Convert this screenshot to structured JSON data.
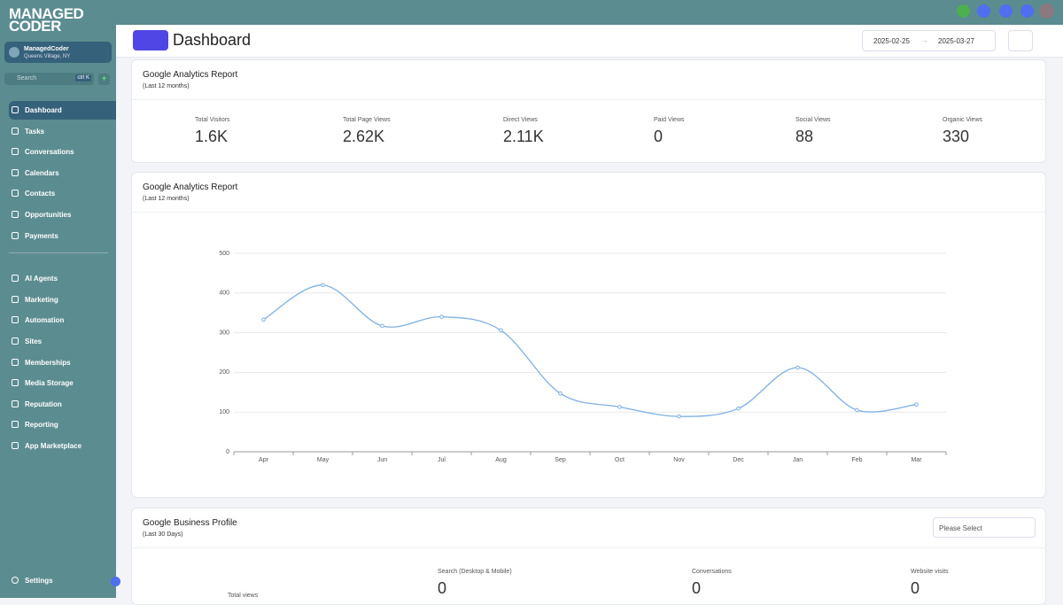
{
  "logo": [
    "MANAGED",
    "CODER"
  ],
  "account": {
    "name": "ManagedCoder",
    "location": "Queens Village, NY"
  },
  "search": {
    "placeholder": "Search",
    "shortcut": "ctrl K"
  },
  "nav": [
    "Dashboard",
    "Tasks",
    "Conversations",
    "Calendars",
    "Contacts",
    "Opportunities",
    "Payments",
    "AI Agents",
    "Marketing",
    "Automation",
    "Sites",
    "Memberships",
    "Media Storage",
    "Reputation",
    "Reporting",
    "App Marketplace"
  ],
  "settings": "Settings",
  "header": {
    "title": "Dashboard",
    "date_from": "2025-02-25",
    "date_to": "2025-03-27"
  },
  "stats_card": {
    "title": "Google Analytics Report",
    "subtitle": "(Last 12 months)",
    "stats": [
      {
        "label": "Total Visitors",
        "value": "1.6K"
      },
      {
        "label": "Total Page Views",
        "value": "2.62K"
      },
      {
        "label": "Direct Views",
        "value": "2.11K"
      },
      {
        "label": "Paid Views",
        "value": "0"
      },
      {
        "label": "Social Views",
        "value": "88"
      },
      {
        "label": "Organic Views",
        "value": "330"
      }
    ]
  },
  "chart_data": {
    "type": "line",
    "title": "Google Analytics Report",
    "subtitle": "(Last 12 months)",
    "categories": [
      "Apr",
      "May",
      "Jun",
      "Jul",
      "Aug",
      "Sep",
      "Oct",
      "Nov",
      "Dec",
      "Jan",
      "Feb",
      "Mar"
    ],
    "series": [
      {
        "color": "#7eb0e4",
        "values": [
          333,
          420,
          317,
          340,
          306,
          147,
          113,
          89,
          109,
          212,
          105,
          119
        ]
      }
    ],
    "ylim": [
      0,
      500
    ],
    "yticks": [
      0,
      100,
      200,
      300,
      400,
      500
    ],
    "grid": true
  },
  "business_card": {
    "title": "Google Business Profile",
    "subtitle": "(Last 30 Days)",
    "select_placeholder": "Please Select",
    "total_label": "Total views",
    "stats": [
      {
        "label": "Search (Desktop & Mobile)",
        "value": "0"
      },
      {
        "label": "Conversations",
        "value": "0"
      },
      {
        "label": "Website visits",
        "value": "0"
      }
    ]
  }
}
